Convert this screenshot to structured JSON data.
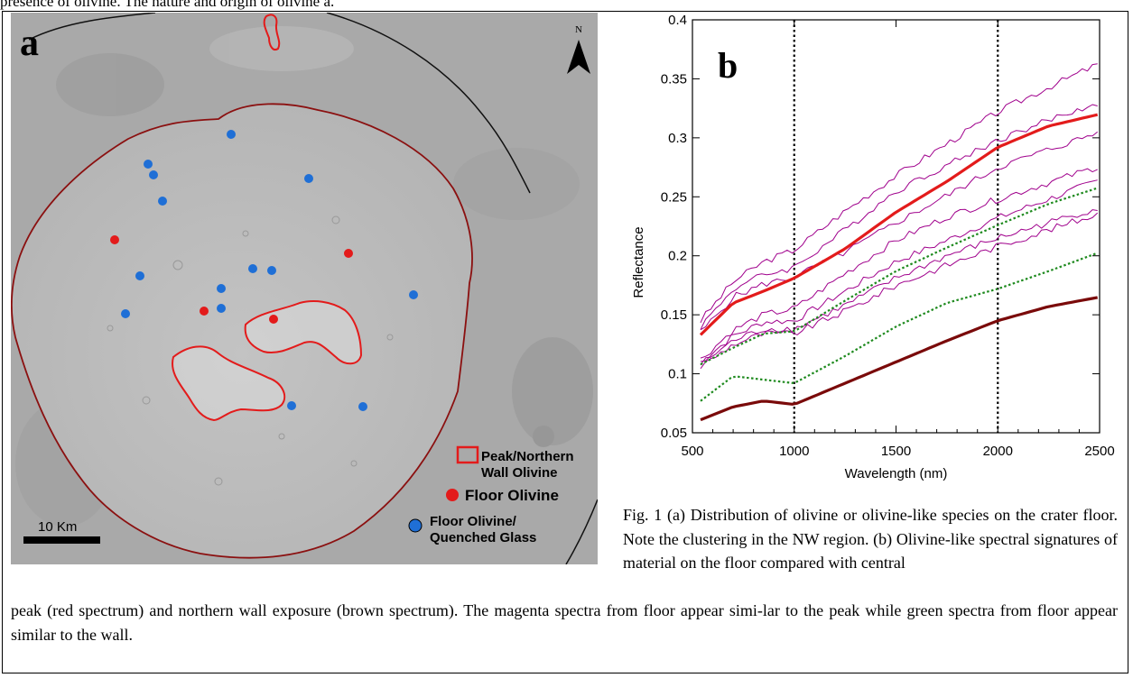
{
  "header_fragment": "presence of olivine. The nature and origin of olivine a.",
  "panel_a": {
    "label": "a",
    "north_label": "N",
    "scale_bar_label": "10 Km",
    "legend": [
      {
        "label": "Peak/Northern",
        "label2": "Wall Olivine",
        "color": "#e00000",
        "symbol": "square-outline"
      },
      {
        "label": "Floor Olivine",
        "color": "#e00000",
        "symbol": "dot"
      },
      {
        "label": "Floor Olivine/",
        "label2": "Quenched Glass",
        "color": "#1f6fd6",
        "symbol": "dot"
      }
    ],
    "colors": {
      "crater_rim": "#8b1010",
      "peak_outline": "#e31b1b",
      "floor_olivine": "#e31b1b",
      "glass": "#1f6fd6"
    }
  },
  "panel_b": {
    "label": "b"
  },
  "chart_data": {
    "type": "line",
    "xlabel": "Wavelength (nm)",
    "ylabel": "Reflectance",
    "xlim": [
      500,
      2500
    ],
    "ylim": [
      0.05,
      0.4
    ],
    "xticks": [
      500,
      1000,
      1500,
      2000,
      2500
    ],
    "yticks": [
      0.05,
      0.1,
      0.15,
      0.2,
      0.25,
      0.3,
      0.35,
      0.4
    ],
    "ytick_labels": [
      "0.05",
      "0.1",
      "0.15",
      "0.2",
      "0.25",
      "0.3",
      "0.35",
      "0.4"
    ],
    "reference_lines_x": [
      1000,
      2000
    ],
    "series": [
      {
        "color": "#a0008c",
        "width": 1,
        "style": "solid",
        "x": [
          540,
          700,
          850,
          1000,
          1250,
          1500,
          1750,
          2000,
          2250,
          2500
        ],
        "y": [
          0.145,
          0.178,
          0.195,
          0.205,
          0.238,
          0.268,
          0.295,
          0.322,
          0.343,
          0.363
        ]
      },
      {
        "color": "#a0008c",
        "width": 1,
        "style": "solid",
        "x": [
          540,
          700,
          850,
          1000,
          1250,
          1500,
          1750,
          2000,
          2250,
          2500
        ],
        "y": [
          0.14,
          0.172,
          0.184,
          0.19,
          0.222,
          0.255,
          0.277,
          0.298,
          0.315,
          0.33
        ]
      },
      {
        "color": "#a0008c",
        "width": 1,
        "style": "solid",
        "x": [
          540,
          700,
          850,
          1000,
          1250,
          1500,
          1750,
          2000,
          2250,
          2500
        ],
        "y": [
          0.135,
          0.165,
          0.176,
          0.182,
          0.203,
          0.228,
          0.251,
          0.275,
          0.29,
          0.305
        ]
      },
      {
        "color": "#a0008c",
        "width": 1,
        "style": "solid",
        "x": [
          540,
          700,
          850,
          1000,
          1250,
          1500,
          1750,
          2000,
          2250,
          2500
        ],
        "y": [
          0.112,
          0.137,
          0.15,
          0.155,
          0.185,
          0.213,
          0.233,
          0.248,
          0.262,
          0.276
        ]
      },
      {
        "color": "#a0008c",
        "width": 1,
        "style": "solid",
        "x": [
          540,
          700,
          850,
          1000,
          1250,
          1500,
          1750,
          2000,
          2250,
          2500
        ],
        "y": [
          0.11,
          0.132,
          0.144,
          0.145,
          0.17,
          0.195,
          0.213,
          0.232,
          0.248,
          0.264
        ]
      },
      {
        "color": "#a0008c",
        "width": 1,
        "style": "solid",
        "x": [
          540,
          700,
          850,
          1000,
          1250,
          1500,
          1750,
          2000,
          2250,
          2500
        ],
        "y": [
          0.108,
          0.128,
          0.138,
          0.138,
          0.158,
          0.181,
          0.2,
          0.215,
          0.228,
          0.241
        ]
      },
      {
        "color": "#a0008c",
        "width": 1,
        "style": "solid",
        "x": [
          540,
          700,
          850,
          1000,
          1250,
          1500,
          1750,
          2000,
          2250,
          2500
        ],
        "y": [
          0.106,
          0.125,
          0.134,
          0.134,
          0.153,
          0.175,
          0.192,
          0.208,
          0.222,
          0.236
        ]
      },
      {
        "color": "#e31b1b",
        "width": 3.2,
        "style": "solid",
        "x": [
          540,
          700,
          850,
          1000,
          1250,
          1500,
          1750,
          2000,
          2250,
          2500
        ],
        "y": [
          0.133,
          0.16,
          0.17,
          0.181,
          0.206,
          0.237,
          0.263,
          0.292,
          0.31,
          0.32
        ]
      },
      {
        "color": "#1e8a1e",
        "width": 2.2,
        "style": "dotted",
        "x": [
          540,
          700,
          850,
          1000,
          1250,
          1500,
          1750,
          2000,
          2250,
          2500
        ],
        "y": [
          0.108,
          0.122,
          0.134,
          0.136,
          0.162,
          0.187,
          0.207,
          0.226,
          0.244,
          0.258
        ]
      },
      {
        "color": "#1e8a1e",
        "width": 2.2,
        "style": "dotted",
        "x": [
          540,
          700,
          850,
          1000,
          1250,
          1500,
          1750,
          2000,
          2250,
          2500
        ],
        "y": [
          0.077,
          0.098,
          0.095,
          0.092,
          0.115,
          0.14,
          0.16,
          0.172,
          0.187,
          0.203
        ]
      },
      {
        "color": "#7a0a0a",
        "width": 3.2,
        "style": "solid",
        "x": [
          540,
          700,
          850,
          1000,
          1250,
          1500,
          1750,
          2000,
          2250,
          2500
        ],
        "y": [
          0.061,
          0.072,
          0.077,
          0.074,
          0.092,
          0.11,
          0.128,
          0.145,
          0.157,
          0.165
        ]
      }
    ]
  },
  "caption": {
    "part1": "Fig. 1 (a) Distribution of olivine or olivine-like species on the crater floor. Note the clustering in the NW region. (b) Olivine-like spectral signatures of material on the floor compared with central",
    "part2": "peak (red spectrum) and  northern wall exposure (brown spectrum). The magenta spectra from floor appear simi-lar to the peak while green spectra from floor appear similar to the wall."
  }
}
